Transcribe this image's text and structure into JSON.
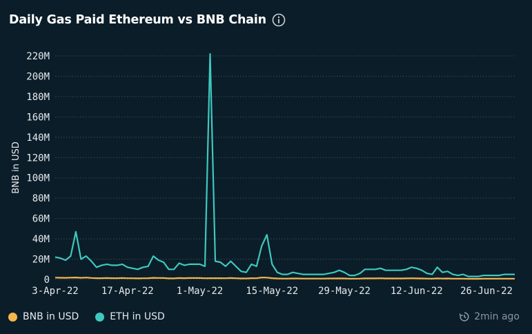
{
  "header": {
    "title": "Daily Gas Paid Ethereum vs BNB Chain"
  },
  "icons": {
    "info": "info-icon",
    "refresh": "clock-refresh-icon"
  },
  "updated": {
    "label": "2min ago"
  },
  "colors": {
    "background": "#0b1d28",
    "bnb": "#f5b74c",
    "eth": "#3ec9c0",
    "grid": "#3a4b55",
    "text": "#e6eaee"
  },
  "chart_data": {
    "type": "line",
    "title": "Daily Gas Paid Ethereum vs BNB Chain",
    "xlabel": "",
    "ylabel": "BNB in USD",
    "ylim": [
      0,
      220
    ],
    "y_unit": "M",
    "y_ticks": [
      "0",
      "20M",
      "40M",
      "60M",
      "80M",
      "100M",
      "120M",
      "140M",
      "160M",
      "180M",
      "200M",
      "220M"
    ],
    "x_tick_labels": [
      "3-Apr-22",
      "17-Apr-22",
      "1-May-22",
      "15-May-22",
      "29-May-22",
      "12-Jun-22",
      "26-Jun-22"
    ],
    "x_tick_index": [
      0,
      14,
      28,
      42,
      56,
      70,
      84
    ],
    "legend": [
      "BNB in USD",
      "ETH in USD"
    ],
    "legend_position": "bottom-left",
    "grid": true,
    "series": [
      {
        "name": "ETH in USD",
        "values": [
          22,
          21,
          19,
          23,
          47,
          20,
          23,
          18,
          12,
          14,
          15,
          14,
          14,
          15,
          12,
          11,
          10,
          12,
          13,
          23,
          19,
          17,
          10,
          10,
          16,
          14,
          15,
          15,
          15,
          13,
          222,
          18,
          17,
          13,
          18,
          13,
          8,
          7,
          15,
          13,
          33,
          44,
          15,
          7,
          5,
          5,
          7,
          6,
          5,
          5,
          5,
          5,
          5,
          6,
          7,
          9,
          7,
          4,
          4,
          6,
          10,
          10,
          10,
          11,
          9,
          9,
          9,
          9,
          10,
          12,
          11,
          9,
          6,
          5,
          12,
          7,
          8,
          5,
          4,
          5,
          3,
          3,
          3,
          4,
          4,
          4,
          4,
          5,
          5,
          5
        ]
      },
      {
        "name": "BNB in USD",
        "values": [
          1.8,
          1.7,
          1.6,
          1.8,
          2.0,
          1.6,
          1.9,
          1.5,
          1.3,
          1.3,
          1.4,
          1.3,
          1.3,
          1.4,
          1.2,
          1.2,
          1.1,
          1.2,
          1.3,
          1.6,
          1.5,
          1.4,
          1.1,
          1.1,
          1.4,
          1.3,
          1.4,
          1.4,
          1.4,
          1.2,
          1.3,
          1.3,
          1.3,
          1.2,
          1.4,
          1.2,
          1.0,
          1.0,
          1.3,
          1.2,
          2.0,
          1.8,
          1.3,
          1.0,
          0.9,
          0.9,
          1.0,
          1.0,
          0.9,
          0.9,
          0.9,
          0.9,
          0.9,
          1.0,
          1.0,
          1.1,
          1.0,
          0.8,
          0.8,
          0.9,
          1.1,
          1.1,
          1.1,
          1.2,
          1.0,
          1.0,
          1.0,
          1.0,
          1.1,
          1.2,
          1.1,
          1.0,
          0.9,
          0.8,
          1.1,
          0.9,
          1.0,
          0.8,
          0.8,
          0.8,
          0.7,
          0.7,
          0.7,
          0.8,
          0.8,
          0.8,
          0.8,
          0.8,
          0.8,
          0.8
        ]
      }
    ]
  }
}
